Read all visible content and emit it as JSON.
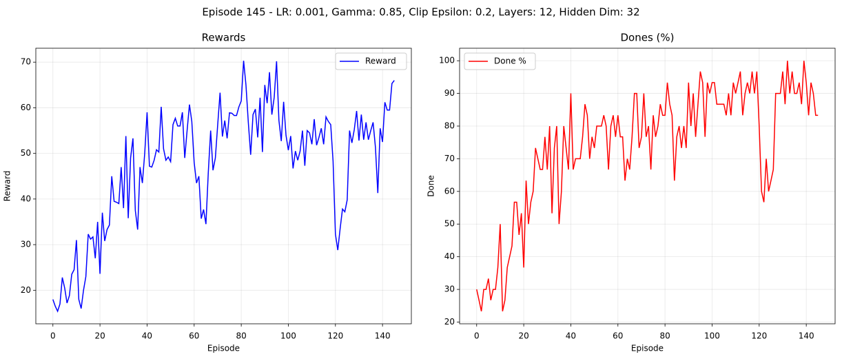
{
  "title": "Episode 145 - LR: 0.001, Gamma: 0.85, Clip Epsilon: 0.2, Layers: 12, Hidden Dim: 32",
  "chart_data": [
    {
      "type": "line",
      "title": "Rewards",
      "xlabel": "Episode",
      "ylabel": "Reward",
      "x": [
        0,
        1,
        2,
        3,
        4,
        5,
        6,
        7,
        8,
        9,
        10,
        11,
        12,
        13,
        14,
        15,
        16,
        17,
        18,
        19,
        20,
        21,
        22,
        23,
        24,
        25,
        26,
        27,
        28,
        29,
        30,
        31,
        32,
        33,
        34,
        35,
        36,
        37,
        38,
        39,
        40,
        41,
        42,
        43,
        44,
        45,
        46,
        47,
        48,
        49,
        50,
        51,
        52,
        53,
        54,
        55,
        56,
        57,
        58,
        59,
        60,
        61,
        62,
        63,
        64,
        65,
        66,
        67,
        68,
        69,
        70,
        71,
        72,
        73,
        74,
        75,
        76,
        77,
        78,
        79,
        80,
        81,
        82,
        83,
        84,
        85,
        86,
        87,
        88,
        89,
        90,
        91,
        92,
        93,
        94,
        95,
        96,
        97,
        98,
        99,
        100,
        101,
        102,
        103,
        104,
        105,
        106,
        107,
        108,
        109,
        110,
        111,
        112,
        113,
        114,
        115,
        116,
        117,
        118,
        119,
        120,
        121,
        122,
        123,
        124,
        125,
        126,
        127,
        128,
        129,
        130,
        131,
        132,
        133,
        134,
        135,
        136,
        137,
        138,
        139,
        140,
        141,
        142,
        143,
        144,
        145
      ],
      "series": [
        {
          "name": "Reward",
          "color": "#0000ff",
          "values": [
            18,
            16.5,
            15.4,
            17,
            22.8,
            20.5,
            17.2,
            18.8,
            23.5,
            24.5,
            31,
            18,
            16,
            20,
            23,
            32.3,
            31.2,
            31.7,
            27,
            35,
            23.6,
            37,
            30.8,
            33.3,
            34.3,
            45,
            39.5,
            39.3,
            39,
            47,
            38,
            53.8,
            35.8,
            49,
            53.3,
            37.5,
            33.3,
            47,
            43.5,
            50,
            59,
            47.2,
            47,
            48.5,
            50.8,
            50.3,
            60.2,
            51,
            48.5,
            49.2,
            48.2,
            56.3,
            57.7,
            56,
            56,
            59,
            49,
            55,
            60.7,
            57,
            48,
            43.5,
            45,
            35.7,
            37.7,
            34.5,
            45.8,
            55,
            46.3,
            49,
            56.3,
            63.3,
            53.7,
            57.2,
            53.3,
            58.9,
            58.8,
            58.3,
            58.3,
            60.2,
            61.5,
            70.3,
            65,
            56.8,
            49.7,
            58.5,
            59.7,
            53.5,
            62.2,
            50.3,
            65,
            61,
            67.8,
            58.5,
            62.3,
            70.2,
            57.2,
            52.7,
            61.3,
            54,
            50.7,
            53.8,
            46.7,
            50.5,
            48.5,
            50.5,
            55,
            47.3,
            55,
            54.5,
            52,
            57.5,
            51.8,
            53.5,
            55.5,
            52,
            58,
            57,
            56.3,
            48.3,
            32.3,
            28.8,
            33.5,
            37.8,
            37.2,
            39.8,
            55,
            52.3,
            55.2,
            59.3,
            52.8,
            58.5,
            53,
            56.8,
            53,
            55,
            56.8,
            51.3,
            41.3,
            55.5,
            52.5,
            61.2,
            59.5,
            59.5,
            65.3,
            66
          ]
        }
      ],
      "xlim": [
        -7.25,
        152.25
      ],
      "ylim": [
        12.65,
        73.05
      ],
      "xticks": [
        0,
        20,
        40,
        60,
        80,
        100,
        120,
        140
      ],
      "yticks": [
        20,
        30,
        40,
        50,
        60,
        70
      ],
      "grid": true,
      "legend": "upper right"
    },
    {
      "type": "line",
      "title": "Dones (%)",
      "xlabel": "Episode",
      "ylabel": "Done",
      "x": [
        0,
        1,
        2,
        3,
        4,
        5,
        6,
        7,
        8,
        9,
        10,
        11,
        12,
        13,
        14,
        15,
        16,
        17,
        18,
        19,
        20,
        21,
        22,
        23,
        24,
        25,
        26,
        27,
        28,
        29,
        30,
        31,
        32,
        33,
        34,
        35,
        36,
        37,
        38,
        39,
        40,
        41,
        42,
        43,
        44,
        45,
        46,
        47,
        48,
        49,
        50,
        51,
        52,
        53,
        54,
        55,
        56,
        57,
        58,
        59,
        60,
        61,
        62,
        63,
        64,
        65,
        66,
        67,
        68,
        69,
        70,
        71,
        72,
        73,
        74,
        75,
        76,
        77,
        78,
        79,
        80,
        81,
        82,
        83,
        84,
        85,
        86,
        87,
        88,
        89,
        90,
        91,
        92,
        93,
        94,
        95,
        96,
        97,
        98,
        99,
        100,
        101,
        102,
        103,
        104,
        105,
        106,
        107,
        108,
        109,
        110,
        111,
        112,
        113,
        114,
        115,
        116,
        117,
        118,
        119,
        120,
        121,
        122,
        123,
        124,
        125,
        126,
        127,
        128,
        129,
        130,
        131,
        132,
        133,
        134,
        135,
        136,
        137,
        138,
        139,
        140,
        141,
        142,
        143,
        144,
        145
      ],
      "series": [
        {
          "name": "Done %",
          "color": "#ff0000",
          "values": [
            30,
            26.7,
            23.3,
            30,
            30,
            33.3,
            26.7,
            30,
            30,
            36.7,
            50,
            23.3,
            26.7,
            36.7,
            40,
            43.3,
            56.7,
            56.7,
            46.7,
            53.3,
            36.7,
            63.3,
            50,
            56.7,
            60,
            73.3,
            70,
            66.7,
            66.7,
            76.7,
            66.7,
            80,
            53.3,
            73.3,
            80,
            50,
            60,
            80,
            73.3,
            66.7,
            90,
            66.7,
            70,
            70,
            70,
            76.7,
            86.7,
            83.3,
            70,
            76.7,
            73.3,
            80,
            80,
            80,
            83.3,
            80,
            66.7,
            80,
            83.3,
            76.7,
            83.3,
            76.7,
            76.7,
            63.3,
            70,
            66.7,
            76.7,
            90,
            90,
            73.3,
            76.7,
            90,
            76.7,
            80,
            66.7,
            83.3,
            76.7,
            80,
            86.7,
            83.3,
            83.3,
            93.3,
            86.7,
            83.3,
            63.3,
            76.7,
            80,
            73.3,
            80,
            73.3,
            93.3,
            80,
            90,
            76.7,
            86.7,
            96.7,
            93.3,
            76.7,
            93.3,
            90,
            93.3,
            93.3,
            86.7,
            86.7,
            86.7,
            86.7,
            83.3,
            90,
            83.3,
            93.3,
            90,
            93.3,
            96.7,
            83.3,
            90,
            93.3,
            90,
            96.7,
            90,
            96.7,
            80,
            60,
            56.7,
            70,
            60,
            63.3,
            66.7,
            90,
            90,
            90,
            96.7,
            86.7,
            100,
            90,
            96.7,
            90,
            90,
            93.3,
            86.7,
            100,
            93.3,
            83.3,
            93.3,
            90,
            83.3,
            83.3
          ]
        }
      ],
      "xlim": [
        -7.25,
        152.25
      ],
      "ylim": [
        19.47,
        103.83
      ],
      "xticks": [
        0,
        20,
        40,
        60,
        80,
        100,
        120,
        140
      ],
      "yticks": [
        20,
        30,
        40,
        50,
        60,
        70,
        80,
        90,
        100
      ],
      "grid": true,
      "legend": "upper left"
    }
  ]
}
